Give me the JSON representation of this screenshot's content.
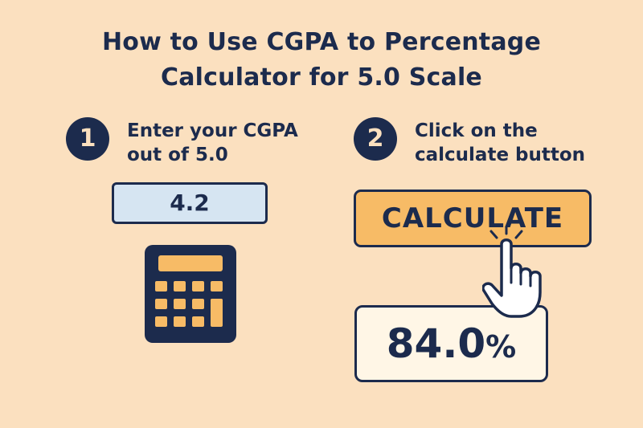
{
  "header": {
    "title_line_1": "How to Use CGPA to Percentage",
    "title_line_2": "Calculator for 5.0 Scale"
  },
  "steps": [
    {
      "number": "1",
      "line_1": "Enter your CGPA",
      "line_2": "out of 5.0"
    },
    {
      "number": "2",
      "line_1": "Click on the",
      "line_2": "calculate button"
    }
  ],
  "input": {
    "value": "4.2"
  },
  "calculate_button": {
    "label": "CALCULATE"
  },
  "result": {
    "value": "84.0",
    "unit": "%"
  },
  "icons": {
    "calculator": "calculator-icon",
    "hand": "pointing-hand-icon"
  },
  "colors": {
    "background": "#fbe0bf",
    "navy": "#1c2b4d",
    "orange": "#f7bb66",
    "input_blue": "#d6e5f2",
    "result_bg": "#fff6e6"
  }
}
